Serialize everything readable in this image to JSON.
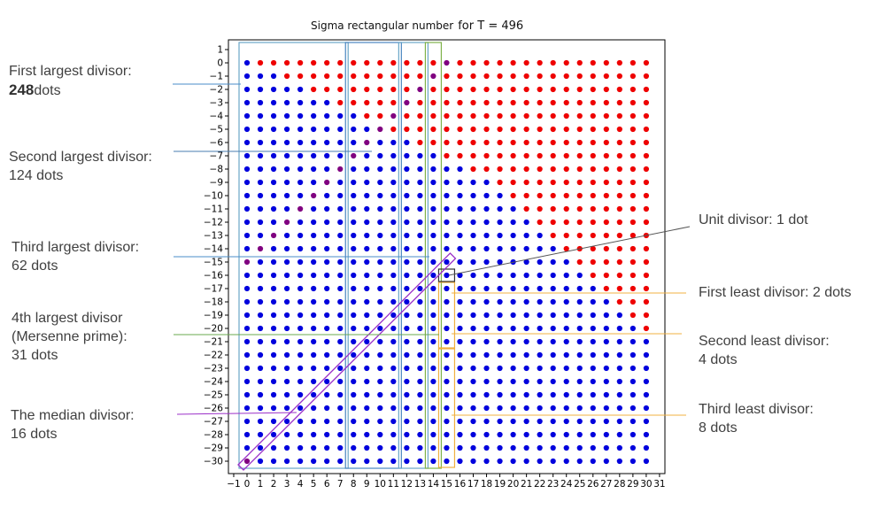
{
  "chart_data": {
    "type": "scatter",
    "title_prefix": "Sigma rectangular number",
    "title_suffix": "for T = 496",
    "T": 496,
    "xlim": [
      -1,
      31
    ],
    "ylim": [
      -30.5,
      1
    ],
    "x_ticks": [
      -1,
      0,
      1,
      2,
      3,
      4,
      5,
      6,
      7,
      8,
      9,
      10,
      11,
      12,
      13,
      14,
      15,
      16,
      17,
      18,
      19,
      20,
      21,
      22,
      23,
      24,
      25,
      26,
      27,
      28,
      29,
      30,
      31
    ],
    "y_ticks": [
      1,
      0,
      -1,
      -2,
      -3,
      -4,
      -5,
      -6,
      -7,
      -8,
      -9,
      -10,
      -11,
      -12,
      -13,
      -14,
      -15,
      -16,
      -17,
      -18,
      -19,
      -20,
      -21,
      -22,
      -23,
      -24,
      -25,
      -26,
      -27,
      -28,
      -29,
      -30
    ],
    "grid": false,
    "grid_x_range": [
      0,
      30
    ],
    "grid_y_range": [
      0,
      -30
    ],
    "blue_counts_by_row": [
      1,
      3,
      5,
      7,
      9,
      11,
      13,
      15,
      17,
      19,
      20,
      21,
      22,
      23,
      24,
      25,
      26,
      27,
      28,
      29,
      30,
      31,
      31,
      31,
      31,
      31,
      31,
      31,
      31,
      31,
      31
    ],
    "series": [
      {
        "color": "#0000dd"
      },
      {
        "color": "#ee0000"
      },
      {
        "color": "#800080"
      }
    ],
    "divisor_boxes": [
      {
        "x": [
          0,
          7
        ],
        "color": "#6aa6c8"
      },
      {
        "x": [
          8,
          11
        ],
        "color": "#4a86c0"
      },
      {
        "x": [
          12,
          13
        ],
        "color": "#6aa6c8"
      },
      {
        "x": [
          14,
          14
        ],
        "color": "#7fb24a"
      },
      {
        "x": [
          15,
          15
        ],
        "y": [
          -17,
          -21
        ],
        "color": "#f0b040"
      },
      {
        "x": [
          15,
          15
        ],
        "y": [
          -22,
          -30
        ],
        "color": "#f0b040"
      },
      {
        "x": [
          15,
          15
        ],
        "y": [
          -16,
          -16
        ],
        "color": "#333333"
      }
    ],
    "annotations": [
      {
        "lines": [
          "First largest divisor:"
        ],
        "value": "248",
        "unit": "dots"
      },
      {
        "lines": [
          "Second largest divisor:",
          "124 dots"
        ]
      },
      {
        "lines": [
          "Third largest divisor:",
          "62 dots"
        ]
      },
      {
        "lines": [
          "4th largest divisor",
          "(Mersenne prime):",
          "31 dots"
        ]
      },
      {
        "lines": [
          "The median divisor:",
          "16 dots"
        ]
      },
      {
        "lines": [
          "Unit divisor: 1 dot"
        ]
      },
      {
        "lines": [
          "First least divisor: 2 dots"
        ]
      },
      {
        "lines": [
          "Second least divisor:",
          "4 dots"
        ]
      },
      {
        "lines": [
          "Third least divisor:",
          "8 dots"
        ]
      }
    ]
  }
}
